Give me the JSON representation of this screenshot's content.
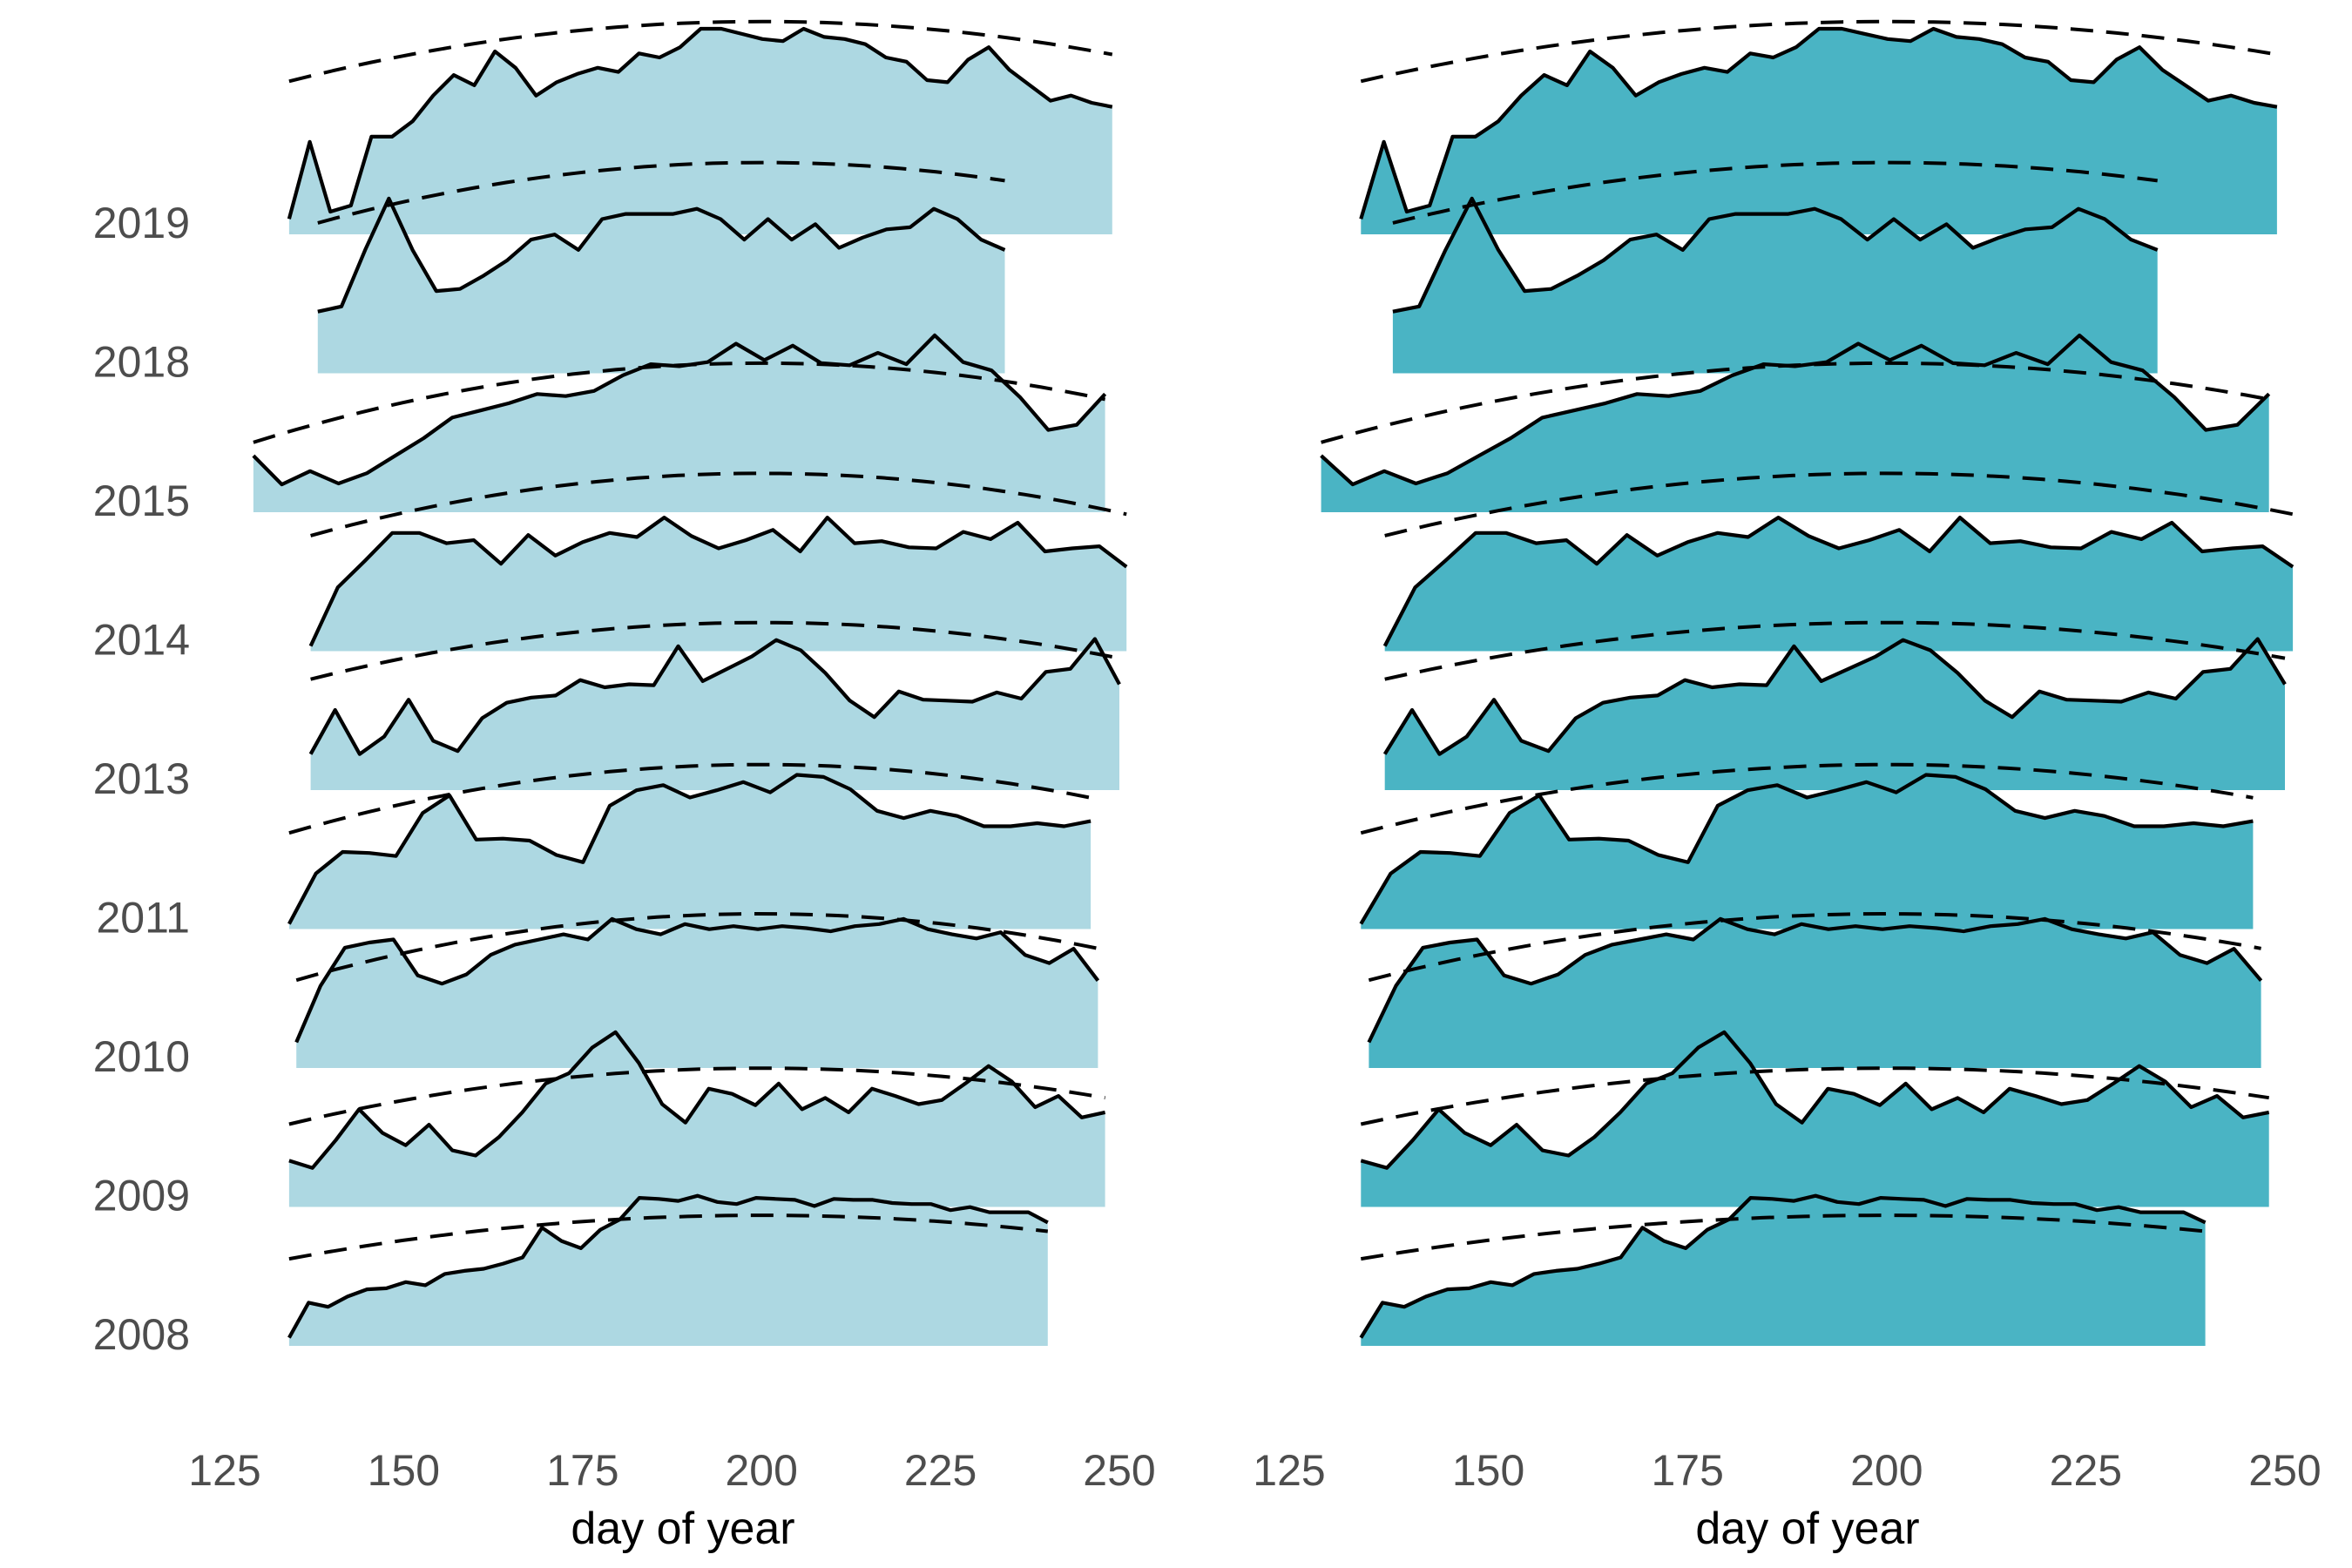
{
  "chart_data": {
    "type": "ridgeline",
    "colors": {
      "left_fill": "#add8e2",
      "right_fill": "#4ab4c4",
      "line": "#000000"
    },
    "x_ticks": [
      125,
      150,
      175,
      200,
      225,
      250
    ],
    "xlim": [
      125,
      250
    ],
    "panels": [
      {
        "id": "left",
        "xlabel": "day of year",
        "fill": "#add8e2",
        "y_ticks_shown": true
      },
      {
        "id": "right",
        "xlabel": "day of year",
        "fill": "#4ab4c4",
        "y_ticks_shown": false
      }
    ],
    "series": [
      {
        "year": "2008",
        "x_start": 134,
        "x_end": 240,
        "trend_peak": 0.72,
        "trend_curvature": 0.35,
        "curve": [
          0.08,
          0.42,
          0.38,
          0.48,
          0.55,
          0.56,
          0.62,
          0.59,
          0.7,
          0.73,
          0.75,
          0.8,
          0.86,
          1.15,
          1.02,
          0.95,
          1.13,
          1.23,
          1.44,
          1.43,
          1.41,
          1.46,
          1.4,
          1.38,
          1.44,
          1.43,
          1.42,
          1.36,
          1.43,
          1.42,
          1.42,
          1.39,
          1.38,
          1.38,
          1.32,
          1.35,
          1.3,
          1.3,
          1.3,
          1.2
        ]
      },
      {
        "year": "2009",
        "x_start": 134,
        "x_end": 248,
        "trend_peak": 0.8,
        "trend_curvature": 0.45,
        "curve": [
          0.45,
          0.38,
          0.65,
          0.95,
          0.72,
          0.6,
          0.8,
          0.55,
          0.5,
          0.68,
          0.92,
          1.2,
          1.3,
          1.55,
          1.7,
          1.4,
          1.0,
          0.82,
          1.15,
          1.1,
          0.99,
          1.2,
          0.95,
          1.06,
          0.92,
          1.15,
          1.08,
          1.0,
          1.04,
          1.2,
          1.37,
          1.22,
          0.97,
          1.08,
          0.87,
          0.92
        ]
      },
      {
        "year": "2010",
        "x_start": 135,
        "x_end": 247,
        "trend_peak": 0.95,
        "trend_curvature": 0.55,
        "curve": [
          0.25,
          0.8,
          1.17,
          1.22,
          1.25,
          0.9,
          0.82,
          0.91,
          1.1,
          1.2,
          1.25,
          1.3,
          1.25,
          1.45,
          1.35,
          1.3,
          1.4,
          1.35,
          1.38,
          1.35,
          1.38,
          1.36,
          1.33,
          1.38,
          1.4,
          1.45,
          1.35,
          1.3,
          1.26,
          1.32,
          1.1,
          1.02,
          1.16,
          0.85
        ]
      },
      {
        "year": "2011",
        "x_start": 134,
        "x_end": 246,
        "trend_peak": 1.05,
        "trend_curvature": 0.55,
        "curve": [
          0.05,
          0.54,
          0.75,
          0.74,
          0.71,
          1.13,
          1.3,
          0.87,
          0.88,
          0.86,
          0.72,
          0.65,
          1.2,
          1.35,
          1.4,
          1.28,
          1.35,
          1.43,
          1.33,
          1.5,
          1.48,
          1.36,
          1.15,
          1.08,
          1.15,
          1.1,
          1.0,
          1.0,
          1.03,
          1.0,
          1.05
        ]
      },
      {
        "year": "2013",
        "x_start": 137,
        "x_end": 250,
        "trend_peak": 1.08,
        "trend_curvature": 0.5,
        "curve": [
          0.35,
          0.78,
          0.35,
          0.52,
          0.88,
          0.48,
          0.38,
          0.7,
          0.85,
          0.9,
          0.92,
          1.07,
          1.0,
          1.03,
          1.02,
          1.4,
          1.06,
          1.18,
          1.3,
          1.46,
          1.36,
          1.14,
          0.87,
          0.71,
          0.96,
          0.88,
          0.87,
          0.86,
          0.95,
          0.89,
          1.15,
          1.18,
          1.47,
          1.03
        ]
      },
      {
        "year": "2014",
        "x_start": 137,
        "x_end": 251,
        "trend_peak": 1.18,
        "trend_curvature": 0.55,
        "curve": [
          0.05,
          0.62,
          0.88,
          1.15,
          1.15,
          1.05,
          1.08,
          0.85,
          1.13,
          0.93,
          1.06,
          1.15,
          1.11,
          1.3,
          1.12,
          1.0,
          1.08,
          1.18,
          0.97,
          1.3,
          1.05,
          1.07,
          1.01,
          1.0,
          1.16,
          1.09,
          1.25,
          0.97,
          1.0,
          1.02,
          0.82
        ]
      },
      {
        "year": "2015",
        "x_start": 129,
        "x_end": 248,
        "trend_peak": 0.9,
        "trend_curvature": 0.55,
        "curve": [
          0.55,
          0.27,
          0.4,
          0.28,
          0.38,
          0.55,
          0.72,
          0.92,
          0.99,
          1.06,
          1.15,
          1.13,
          1.18,
          1.33,
          1.44,
          1.42,
          1.46,
          1.64,
          1.48,
          1.62,
          1.45,
          1.43,
          1.55,
          1.44,
          1.72,
          1.46,
          1.38,
          1.12,
          0.8,
          0.85,
          1.15
        ]
      },
      {
        "year": "2018",
        "x_start": 138,
        "x_end": 234,
        "trend_peak": 1.5,
        "trend_curvature": 0.55,
        "curve": [
          0.6,
          0.65,
          1.2,
          1.7,
          1.2,
          0.8,
          0.82,
          0.95,
          1.1,
          1.3,
          1.35,
          1.2,
          1.5,
          1.55,
          1.55,
          1.55,
          1.6,
          1.5,
          1.3,
          1.5,
          1.3,
          1.45,
          1.22,
          1.32,
          1.4,
          1.42,
          1.6,
          1.5,
          1.3,
          1.2
        ]
      },
      {
        "year": "2019",
        "x_start": 134,
        "x_end": 249,
        "trend_peak": 1.52,
        "trend_curvature": 0.48,
        "curve": [
          0.15,
          0.9,
          0.22,
          0.28,
          0.95,
          0.95,
          1.1,
          1.35,
          1.55,
          1.45,
          1.78,
          1.62,
          1.35,
          1.48,
          1.56,
          1.62,
          1.58,
          1.76,
          1.72,
          1.82,
          2.0,
          2.0,
          1.95,
          1.9,
          1.88,
          2.0,
          1.92,
          1.9,
          1.85,
          1.72,
          1.68,
          1.5,
          1.48,
          1.7,
          1.82,
          1.6,
          1.45,
          1.3,
          1.35,
          1.28,
          1.24
        ]
      }
    ]
  }
}
